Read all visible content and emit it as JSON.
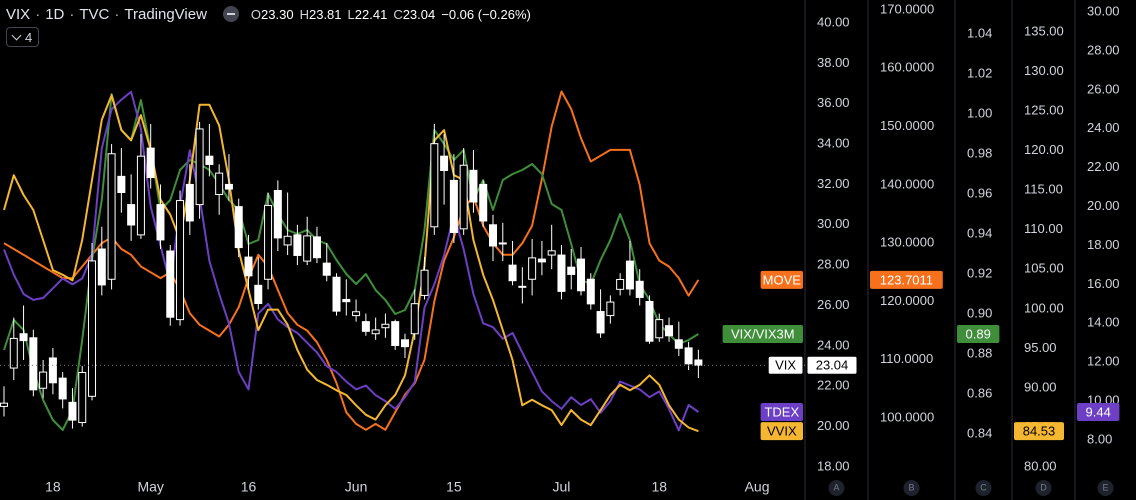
{
  "header": {
    "symbol": "VIX",
    "interval": "1D",
    "exchange": "TVC",
    "source": "TradingView",
    "ohlc": [
      {
        "key": "O",
        "value": "23.30"
      },
      {
        "key": "H",
        "value": "23.81"
      },
      {
        "key": "L",
        "value": "22.41"
      },
      {
        "key": "C",
        "value": "23.04"
      }
    ],
    "change": "−0.06 (−0.26%)",
    "indicator_count": "4"
  },
  "chart_data": {
    "type": "candlestick",
    "categories": [
      null,
      null,
      null,
      null,
      null,
      "18",
      null,
      null,
      null,
      null,
      null,
      null,
      null,
      null,
      null,
      "May",
      null,
      null,
      null,
      null,
      null,
      null,
      null,
      null,
      null,
      "16",
      null,
      null,
      null,
      null,
      null,
      null,
      null,
      null,
      null,
      null,
      "Jun",
      null,
      null,
      null,
      null,
      null,
      null,
      null,
      null,
      null,
      "15",
      null,
      null,
      null,
      null,
      null,
      null,
      null,
      null,
      null,
      null,
      "Jul",
      null,
      null,
      null,
      null,
      null,
      null,
      null,
      null,
      null,
      "18",
      null,
      null,
      null,
      null,
      null,
      null,
      null,
      null,
      null,
      "Aug"
    ],
    "axes": [
      {
        "id": "A",
        "ylim": [
          17.6,
          41.14
        ],
        "yticks": [
          {
            "value": 18,
            "label": "18.00"
          },
          {
            "value": 20,
            "label": "20.00"
          },
          {
            "value": 22,
            "label": "22.00"
          },
          {
            "value": 24,
            "label": "24.00"
          },
          {
            "value": 26,
            "label": "26.00"
          },
          {
            "value": 28,
            "label": "28.00"
          },
          {
            "value": 30,
            "label": "30.00"
          },
          {
            "value": 32,
            "label": "32.00"
          },
          {
            "value": 34,
            "label": "34.00"
          },
          {
            "value": 36,
            "label": "36.00"
          },
          {
            "value": 38,
            "label": "38.00"
          },
          {
            "value": 40,
            "label": "40.00"
          }
        ]
      },
      {
        "id": "B",
        "ylim": [
          90.24,
          171.7
        ],
        "yticks": [
          {
            "value": 100,
            "label": "100.0000"
          },
          {
            "value": 110,
            "label": "110.0000"
          },
          {
            "value": 120,
            "label": "120.0000"
          },
          {
            "value": 130,
            "label": "130.0000"
          },
          {
            "value": 140,
            "label": "140.0000"
          },
          {
            "value": 150,
            "label": "150.0000"
          },
          {
            "value": 160,
            "label": "160.0000"
          },
          {
            "value": 170,
            "label": "170.0000"
          }
        ]
      },
      {
        "id": "C",
        "ylim": [
          0.8195,
          1.057
        ],
        "yticks": [
          {
            "value": 0.84,
            "label": "0.84"
          },
          {
            "value": 0.86,
            "label": "0.86"
          },
          {
            "value": 0.88,
            "label": "0.88"
          },
          {
            "value": 0.9,
            "label": "0.90"
          },
          {
            "value": 0.92,
            "label": "0.92"
          },
          {
            "value": 0.94,
            "label": "0.94"
          },
          {
            "value": 0.96,
            "label": "0.96"
          },
          {
            "value": 0.98,
            "label": "0.98"
          },
          {
            "value": 1,
            "label": "1.00"
          },
          {
            "value": 1.02,
            "label": "1.02"
          },
          {
            "value": 1.04,
            "label": "1.04"
          }
        ]
      },
      {
        "id": "D",
        "ylim": [
          78.99,
          139.05
        ],
        "yticks": [
          {
            "value": 80,
            "label": "80.00"
          },
          {
            "value": 85,
            "label": "85.00"
          },
          {
            "value": 90,
            "label": "90.00"
          },
          {
            "value": 95,
            "label": "95.00"
          },
          {
            "value": 100,
            "label": "100.00"
          },
          {
            "value": 105,
            "label": "105.00"
          },
          {
            "value": 110,
            "label": "110.00"
          },
          {
            "value": 115,
            "label": "115.00"
          },
          {
            "value": 120,
            "label": "120.00"
          },
          {
            "value": 125,
            "label": "125.00"
          },
          {
            "value": 130,
            "label": "130.00"
          },
          {
            "value": 135,
            "label": "135.00"
          }
        ]
      },
      {
        "id": "E",
        "ylim": [
          6.2,
          30.62
        ],
        "yticks": [
          {
            "value": 8,
            "label": "8.00"
          },
          {
            "value": 10,
            "label": "10.00"
          },
          {
            "value": 12,
            "label": "12.00"
          },
          {
            "value": 14,
            "label": "14.00"
          },
          {
            "value": 16,
            "label": "16.00"
          },
          {
            "value": 18,
            "label": "18.00"
          },
          {
            "value": 20,
            "label": "20.00"
          },
          {
            "value": 22,
            "label": "22.00"
          },
          {
            "value": 24,
            "label": "24.00"
          },
          {
            "value": 26,
            "label": "26.00"
          },
          {
            "value": 28,
            "label": "28.00"
          },
          {
            "value": 30,
            "label": "30.00"
          }
        ]
      }
    ],
    "series": [
      {
        "name": "MOVE",
        "type": "line",
        "axis": "B",
        "color": "#f7711c",
        "values": [
          130,
          129,
          128,
          127,
          126,
          125,
          124,
          124,
          126,
          128,
          130,
          131,
          129,
          128,
          126,
          125,
          124,
          125,
          122,
          118,
          116,
          115,
          114,
          116,
          119,
          124,
          128,
          126,
          122,
          118,
          116,
          115,
          113,
          110,
          106,
          101,
          99,
          98,
          99,
          98,
          101,
          104,
          106,
          110,
          120,
          127,
          131,
          136,
          138,
          133,
          130,
          128,
          128,
          130,
          133,
          141,
          150,
          156,
          153,
          148,
          144,
          145,
          146,
          146,
          146,
          140,
          130,
          127,
          126,
          124,
          121,
          123.7011,
          null,
          null,
          null,
          null,
          null,
          null
        ]
      },
      {
        "name": "VIX/VIX3M",
        "type": "line",
        "axis": "C",
        "color": "#3f8f3a",
        "values": [
          0.882,
          0.897,
          0.892,
          0.872,
          0.857,
          0.847,
          0.842,
          0.852,
          0.887,
          0.927,
          0.957,
          1.01,
          0.992,
          0.987,
          1.007,
          0.982,
          0.952,
          0.957,
          0.972,
          0.977,
          0.975,
          0.972,
          0.965,
          0.957,
          0.952,
          0.935,
          0.937,
          0.96,
          0.95,
          0.942,
          0.94,
          0.942,
          0.937,
          0.935,
          0.927,
          0.92,
          0.915,
          0.92,
          0.912,
          0.907,
          0.9,
          0.902,
          0.912,
          0.942,
          0.992,
          0.985,
          0.977,
          0.982,
          0.957,
          0.967,
          0.952,
          0.967,
          0.97,
          0.972,
          0.975,
          0.97,
          0.955,
          0.952,
          0.935,
          0.917,
          0.915,
          0.927,
          0.937,
          0.95,
          0.937,
          0.915,
          0.907,
          0.895,
          0.89,
          0.885,
          0.887,
          0.89,
          null,
          null,
          null,
          null,
          null,
          null
        ]
      },
      {
        "name": "VIX",
        "type": "candlestick",
        "axis": "A",
        "color": "#ffffff",
        "open": [
          21.0,
          22.9,
          24.6,
          24.4,
          21.9,
          23.4,
          22.4,
          21.2,
          20.2,
          21.5,
          28.8,
          27.3,
          32.4,
          31.0,
          29.5,
          33.8,
          31.0,
          28.7,
          25.3,
          32.0,
          31.0,
          33.4,
          31.5,
          32.0,
          30.9,
          28.4,
          27.0,
          27.3,
          31.7,
          29.0,
          29.5,
          28.2,
          29.4,
          28.1,
          27.4,
          26.3,
          25.5,
          25.2,
          24.6,
          24.9,
          25.2,
          24.3,
          24.6,
          26.5,
          29.9,
          33.4,
          32.2,
          29.8,
          32.7,
          32.0,
          30.0,
          29.1,
          28.0,
          26.9,
          27.3,
          28.3,
          28.5,
          28.5,
          27.9,
          28.3,
          27.3,
          25.7,
          25.5,
          26.8,
          28.2,
          27.2,
          26.2,
          24.4,
          25.0,
          24.3,
          23.9,
          23.3,
          null,
          null,
          null,
          null,
          null,
          null
        ],
        "high": [
          22.0,
          25.4,
          26.0,
          24.8,
          23.3,
          23.9,
          22.7,
          21.9,
          23.0,
          29.1,
          29.9,
          34.0,
          33.8,
          32.5,
          34.5,
          35.0,
          32.0,
          29.0,
          31.7,
          33.0,
          35.1,
          35.0,
          33.0,
          33.5,
          31.3,
          29.5,
          28.4,
          31.6,
          32.2,
          31.6,
          30.0,
          30.4,
          29.9,
          29.1,
          27.6,
          27.3,
          26.3,
          25.6,
          25.4,
          25.6,
          25.3,
          24.6,
          26.8,
          28.4,
          35.0,
          34.5,
          33.5,
          33.8,
          33.7,
          32.2,
          30.5,
          30.1,
          29.2,
          27.9,
          29.3,
          29.2,
          30.0,
          29.0,
          28.8,
          28.9,
          27.6,
          26.8,
          26.5,
          27.6,
          29.2,
          27.8,
          26.5,
          25.6,
          25.4,
          25.2,
          24.2,
          23.81,
          null,
          null,
          null,
          null,
          null,
          null
        ],
        "low": [
          20.5,
          22.3,
          23.3,
          21.5,
          21.4,
          21.6,
          20.9,
          19.9,
          20.0,
          21.3,
          26.5,
          26.8,
          30.6,
          29.2,
          29.3,
          31.8,
          28.8,
          25.0,
          25.0,
          29.5,
          30.3,
          32.4,
          30.5,
          31.2,
          28.4,
          26.8,
          25.8,
          26.8,
          28.7,
          28.5,
          28.0,
          28.0,
          28.1,
          27.2,
          25.5,
          25.5,
          25.2,
          24.5,
          24.3,
          24.4,
          23.8,
          23.4,
          24.3,
          26.3,
          29.5,
          31.0,
          29.1,
          29.5,
          30.6,
          29.9,
          28.2,
          28.2,
          27.0,
          26.1,
          26.5,
          27.5,
          27.8,
          26.3,
          26.8,
          26.5,
          25.8,
          24.4,
          25.1,
          26.5,
          26.5,
          26.0,
          24.1,
          24.2,
          24.2,
          23.5,
          22.8,
          22.41,
          null,
          null,
          null,
          null,
          null,
          null
        ],
        "close": [
          21.16,
          24.37,
          24.26,
          21.82,
          22.7,
          22.17,
          21.37,
          20.32,
          22.68,
          28.21,
          27.02,
          33.52,
          31.6,
          29.99,
          33.4,
          32.34,
          29.25,
          25.42,
          31.2,
          30.19,
          34.75,
          32.99,
          32.56,
          31.77,
          28.87,
          27.47,
          26.1,
          30.96,
          29.35,
          29.43,
          28.48,
          29.45,
          28.37,
          27.5,
          25.72,
          26.19,
          25.69,
          24.72,
          24.79,
          25.07,
          24.02,
          23.96,
          26.09,
          27.75,
          34.02,
          32.69,
          29.62,
          32.95,
          31.13,
          30.19,
          28.95,
          29.05,
          27.23,
          26.95,
          28.36,
          28.16,
          28.71,
          26.7,
          27.54,
          26.73,
          26.08,
          24.64,
          26.17,
          27.29,
          26.82,
          26.4,
          24.23,
          25.3,
          24.5,
          23.88,
          23.11,
          23.04,
          null,
          null,
          null,
          null,
          null,
          null
        ]
      },
      {
        "name": "TDEX",
        "type": "line",
        "axis": "E",
        "color": "#6c3fc4",
        "values": [
          17.8,
          16.5,
          15.5,
          15.2,
          15.3,
          15.8,
          16.3,
          16.0,
          16.3,
          17.5,
          23.0,
          25.0,
          25.5,
          25.9,
          24.0,
          20.0,
          18.0,
          16.0,
          20.0,
          22.9,
          20.5,
          17.2,
          15.5,
          14.0,
          11.5,
          10.6,
          14.5,
          15.0,
          14.2,
          13.8,
          13.5,
          13.0,
          12.5,
          11.8,
          11.5,
          11.0,
          10.6,
          10.8,
          10.3,
          10.0,
          9.6,
          10.2,
          11.0,
          14.8,
          16.0,
          17.5,
          19.6,
          17.8,
          15.5,
          14.0,
          13.8,
          13.2,
          13.5,
          12.5,
          11.5,
          10.5,
          10.0,
          9.6,
          10.2,
          9.8,
          10.1,
          9.4,
          10.0,
          11.0,
          10.8,
          10.6,
          10.2,
          10.5,
          9.6,
          8.5,
          9.8,
          9.44,
          null,
          null,
          null,
          null,
          null,
          null
        ]
      },
      {
        "name": "VVIX",
        "type": "line",
        "axis": "D",
        "color": "#f5b731",
        "values": [
          112.5,
          116.9,
          114.4,
          112.5,
          108.7,
          104.9,
          104.3,
          103.6,
          108.7,
          116.3,
          123.9,
          127,
          122.6,
          121.3,
          124.5,
          120.1,
          113.8,
          111.9,
          108.7,
          116.3,
          125.8,
          125.8,
          123.2,
          116.3,
          107.4,
          102.4,
          97.3,
          99.9,
          99.9,
          98,
          94.8,
          92.3,
          91,
          90.4,
          89.7,
          89.1,
          87.8,
          86.6,
          86.0,
          87.8,
          89.1,
          91.6,
          97.3,
          105.5,
          121.3,
          122.6,
          116.9,
          116.3,
          108.7,
          104.3,
          101.1,
          97.3,
          93.5,
          87.8,
          88.5,
          87.8,
          87.2,
          85.3,
          87.2,
          86.0,
          85.3,
          87.2,
          89.1,
          90.4,
          89.7,
          90.4,
          91.6,
          90.4,
          87.8,
          86.0,
          85.0,
          84.53,
          null,
          null,
          null,
          null,
          null,
          null
        ]
      }
    ]
  }
}
